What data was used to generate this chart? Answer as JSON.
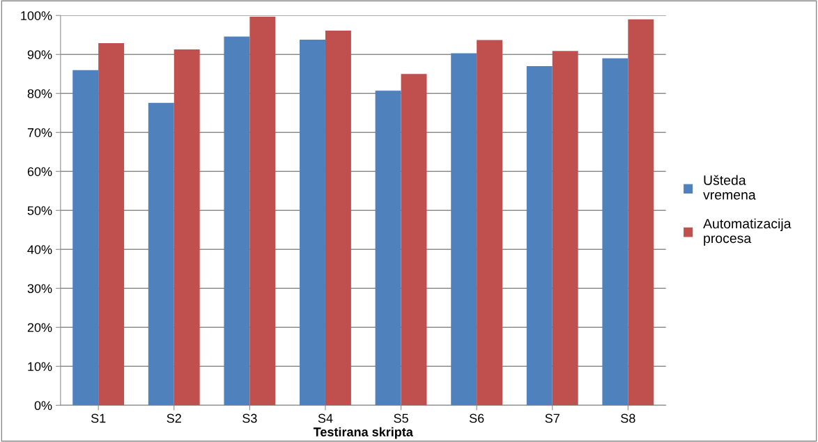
{
  "chart_data": {
    "type": "bar",
    "xlabel": "Testirana skripta",
    "categories": [
      "S1",
      "S2",
      "S3",
      "S4",
      "S5",
      "S6",
      "S7",
      "S8"
    ],
    "series": [
      {
        "name": "Ušteda vremena",
        "color": "#4f81bd",
        "values": [
          86.0,
          77.6,
          94.6,
          93.8,
          80.7,
          90.3,
          87.0,
          89.0
        ]
      },
      {
        "name": "Automatizacija procesa",
        "color": "#c0504d",
        "values": [
          92.9,
          91.3,
          99.7,
          96.1,
          85.0,
          93.7,
          90.9,
          99.0
        ]
      }
    ],
    "ylim": [
      0,
      100
    ],
    "yticks": [
      {
        "value": 0,
        "label": "0%"
      },
      {
        "value": 10,
        "label": "10%"
      },
      {
        "value": 20,
        "label": "20%"
      },
      {
        "value": 30,
        "label": "30%"
      },
      {
        "value": 40,
        "label": "40%"
      },
      {
        "value": 50,
        "label": "50%"
      },
      {
        "value": 60,
        "label": "60%"
      },
      {
        "value": 70,
        "label": "70%"
      },
      {
        "value": 80,
        "label": "80%"
      },
      {
        "value": 90,
        "label": "90%"
      },
      {
        "value": 100,
        "label": "100%"
      }
    ],
    "grid": "y",
    "legend": "right"
  }
}
